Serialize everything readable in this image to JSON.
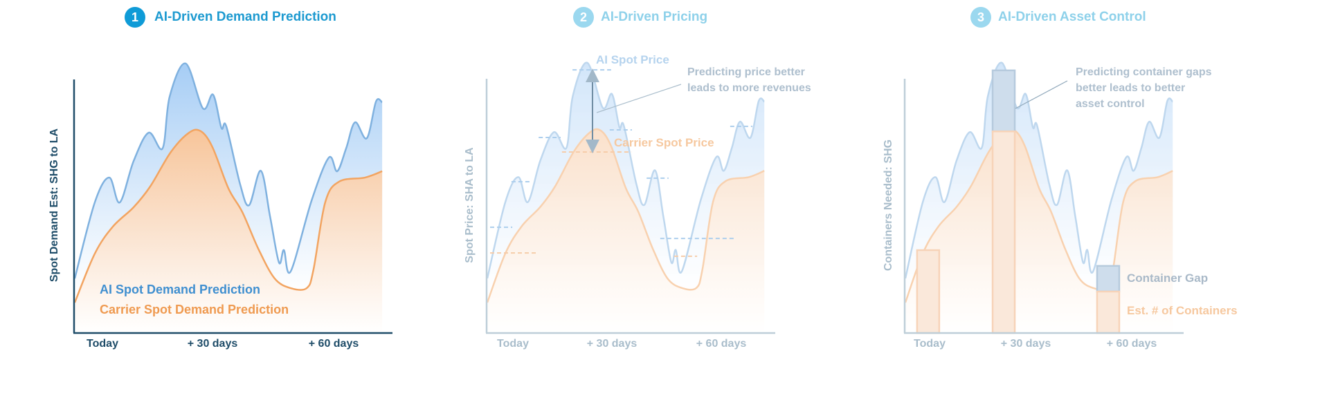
{
  "panels": [
    {
      "number": "1",
      "title": "AI-Driven Demand Prediction",
      "ylabel": "Spot Demand Est: SHG to LA",
      "xticks": [
        "Today",
        "+ 30 days",
        "+ 60 days"
      ],
      "legend": {
        "ai": "AI Spot Demand Prediction",
        "carrier": "Carrier Spot Demand Prediction"
      }
    },
    {
      "number": "2",
      "title": "AI-Driven Pricing",
      "ylabel": "Spot Price: SHA to LA",
      "xticks": [
        "Today",
        "+ 30 days",
        "+ 60 days"
      ],
      "labels": {
        "ai": "AI Spot Price",
        "carrier": "Carrier Spot Price"
      },
      "annotation": "Predicting price better\nleads to more revenues"
    },
    {
      "number": "3",
      "title": "AI-Driven Asset Control",
      "ylabel": "Containers Needed: SHG",
      "xticks": [
        "Today",
        "+ 30 days",
        "+ 60 days"
      ],
      "labels": {
        "gap": "Container Gap",
        "est": "Est. # of Containers"
      },
      "annotation": "Predicting container gaps\nbetter leads to better\nasset control"
    }
  ],
  "colors": {
    "accent": "#1d9ad0",
    "ai_line": "#7fb1df",
    "ai_fill": "#a6cdf5",
    "carrier_line": "#f2a461",
    "carrier_fill": "#f8c59a",
    "axis": "#1e4c68",
    "faded_axis": "#a9bdcb",
    "gap_fill": "#a9c3dc",
    "gap_stroke": "#8fb0cc"
  },
  "chart_data": {
    "type": "area",
    "x_range": [
      0,
      100
    ],
    "y_range": [
      0,
      100
    ],
    "series": [
      {
        "name": "AI Spot Demand Prediction",
        "points": [
          [
            0,
            21.5
          ],
          [
            6.5,
            51.5
          ],
          [
            11.2,
            61.3
          ],
          [
            14.6,
            51.5
          ],
          [
            19.1,
            67.8
          ],
          [
            24,
            79
          ],
          [
            28.5,
            72.8
          ],
          [
            30.8,
            93.2
          ],
          [
            36,
            106.3
          ],
          [
            41.6,
            88.6
          ],
          [
            44.9,
            94
          ],
          [
            47.6,
            80.9
          ],
          [
            49.2,
            81.5
          ],
          [
            53.7,
            58.6
          ],
          [
            56.6,
            50.4
          ],
          [
            60.4,
            64
          ],
          [
            63.4,
            46
          ],
          [
            66.3,
            27.8
          ],
          [
            67.9,
            32.7
          ],
          [
            70.1,
            24.3
          ],
          [
            76.9,
            52.3
          ],
          [
            82.5,
            69.2
          ],
          [
            85.2,
            63.8
          ],
          [
            88.1,
            72.8
          ],
          [
            91,
            83.1
          ],
          [
            94.8,
            76.8
          ],
          [
            97.8,
            91.3
          ],
          [
            99.8,
            91
          ]
        ]
      },
      {
        "name": "Carrier Spot Demand Prediction",
        "points": [
          [
            0,
            12
          ],
          [
            6.5,
            31.3
          ],
          [
            12.4,
            42
          ],
          [
            19.1,
            49.6
          ],
          [
            24.5,
            57.8
          ],
          [
            31.2,
            71.4
          ],
          [
            37.1,
            79
          ],
          [
            40.9,
            79.6
          ],
          [
            44.7,
            73.3
          ],
          [
            49.9,
            57
          ],
          [
            54.4,
            47.7
          ],
          [
            59.6,
            33.2
          ],
          [
            64.9,
            21.5
          ],
          [
            70.1,
            17.7
          ],
          [
            75.3,
            17.7
          ],
          [
            77.5,
            25
          ],
          [
            81.3,
            51.5
          ],
          [
            85.8,
            59.7
          ],
          [
            94.2,
            61.3
          ],
          [
            99.8,
            63.8
          ]
        ]
      }
    ],
    "price_levels": {
      "ai": [
        [
          1,
          9,
          41.6
        ],
        [
          8.7,
          16,
          59.5
        ],
        [
          18.5,
          26.4,
          76.9
        ],
        [
          30.7,
          44.6,
          103.5
        ],
        [
          44.1,
          52.1,
          79.9
        ],
        [
          57.4,
          65.3,
          60.9
        ],
        [
          62.3,
          89,
          37.2
        ],
        [
          87.5,
          95.5,
          81.3
        ]
      ],
      "carrier": [
        [
          1,
          17.5,
          31.5
        ],
        [
          26.9,
          51.9,
          71.2
        ],
        [
          67.3,
          75.6,
          30.2
        ]
      ]
    },
    "price_gap_arrow": {
      "x": 37.9,
      "from": 103.5,
      "to": 71.2
    },
    "containers": [
      {
        "x": 8.5,
        "estimate": 32.6,
        "needed": null
      },
      {
        "x": 36.7,
        "estimate": 79.3,
        "needed": 103.3
      },
      {
        "x": 75.7,
        "estimate": 16.3,
        "needed": 26.4
      }
    ]
  }
}
